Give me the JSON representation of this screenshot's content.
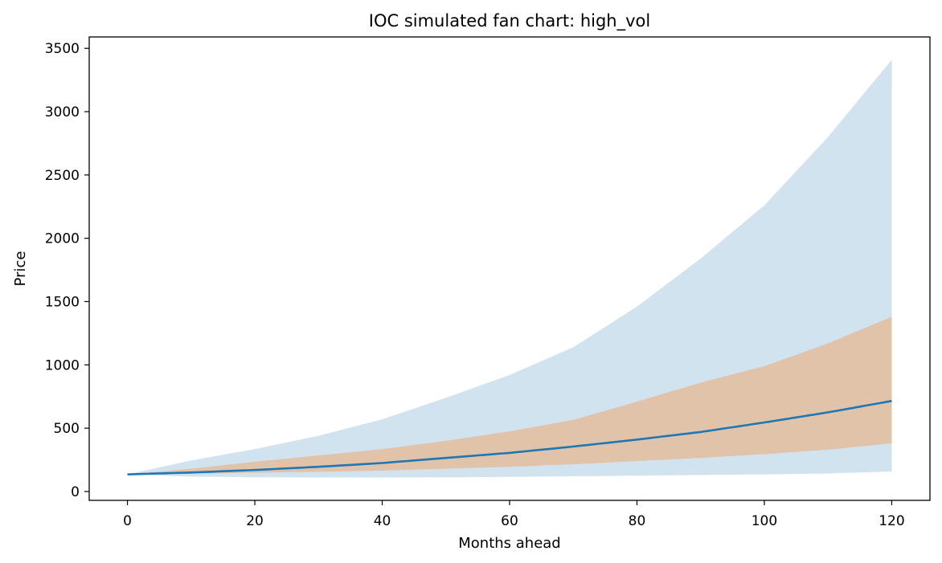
{
  "chart_data": {
    "type": "area",
    "title": "IOC simulated fan chart: high_vol",
    "xlabel": "Months ahead",
    "ylabel": "Price",
    "xlim": [
      -6,
      126
    ],
    "ylim": [
      -70,
      3590
    ],
    "xticks": [
      0,
      20,
      40,
      60,
      80,
      100,
      120
    ],
    "yticks": [
      0,
      500,
      1000,
      1500,
      2000,
      2500,
      3000,
      3500
    ],
    "grid": false,
    "legend": "none",
    "x": [
      0,
      10,
      20,
      30,
      40,
      50,
      60,
      70,
      80,
      90,
      100,
      110,
      120
    ],
    "series": [
      {
        "kind": "band",
        "color": "#d2e3f0",
        "lower": [
          135,
          118,
          112,
          110,
          110,
          112,
          115,
          120,
          125,
          130,
          135,
          142,
          158
        ],
        "upper": [
          135,
          245,
          335,
          440,
          570,
          740,
          920,
          1140,
          1460,
          1840,
          2260,
          2800,
          3410
        ]
      },
      {
        "kind": "band",
        "color": "#e0c3a9",
        "lower": [
          135,
          140,
          148,
          155,
          165,
          180,
          195,
          215,
          240,
          265,
          295,
          330,
          380
        ],
        "upper": [
          135,
          180,
          235,
          285,
          335,
          400,
          475,
          565,
          710,
          860,
          990,
          1170,
          1380
        ]
      },
      {
        "kind": "line",
        "color": "#1f77b4",
        "values": [
          135,
          150,
          170,
          195,
          225,
          265,
          305,
          355,
          410,
          470,
          545,
          625,
          715
        ]
      }
    ]
  }
}
